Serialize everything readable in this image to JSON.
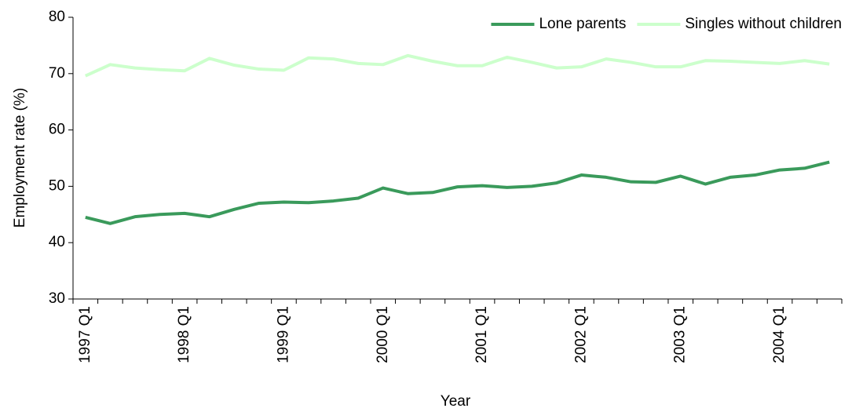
{
  "chart_data": {
    "type": "line",
    "x_label": "Year",
    "y_label": "Employment rate (%)",
    "categories": [
      "1997 Q1",
      null,
      null,
      null,
      "1998 Q1",
      null,
      null,
      null,
      "1999 Q1",
      null,
      null,
      null,
      "2000 Q1",
      null,
      null,
      null,
      "2001 Q1",
      null,
      null,
      null,
      "2002 Q1",
      null,
      null,
      null,
      "2003 Q1",
      null,
      null,
      null,
      "2004 Q1",
      null,
      null
    ],
    "series": [
      {
        "name": "Lone parents",
        "color": "#3a9a5b",
        "values": [
          44.5,
          43.4,
          44.6,
          45.0,
          45.2,
          44.6,
          45.9,
          47.0,
          47.2,
          47.1,
          47.4,
          47.9,
          49.7,
          48.7,
          48.9,
          49.9,
          50.1,
          49.8,
          50.0,
          50.6,
          52.0,
          51.6,
          50.8,
          50.7,
          51.8,
          50.4,
          51.6,
          52.0,
          52.9,
          53.2,
          54.3
        ]
      },
      {
        "name": "Singles without children",
        "color": "#ccffcc",
        "values": [
          69.6,
          71.6,
          71.0,
          70.7,
          70.5,
          72.7,
          71.5,
          70.8,
          70.6,
          72.8,
          72.6,
          71.8,
          71.6,
          73.2,
          72.2,
          71.4,
          71.4,
          72.9,
          72.0,
          71.0,
          71.2,
          72.6,
          72.0,
          71.2,
          71.2,
          72.3,
          72.2,
          72.0,
          71.8,
          72.3,
          71.7
        ]
      }
    ],
    "ylim": [
      30,
      80
    ],
    "yticks": [
      30,
      40,
      50,
      60,
      70,
      80
    ],
    "grid": false,
    "legend": "upper right"
  }
}
